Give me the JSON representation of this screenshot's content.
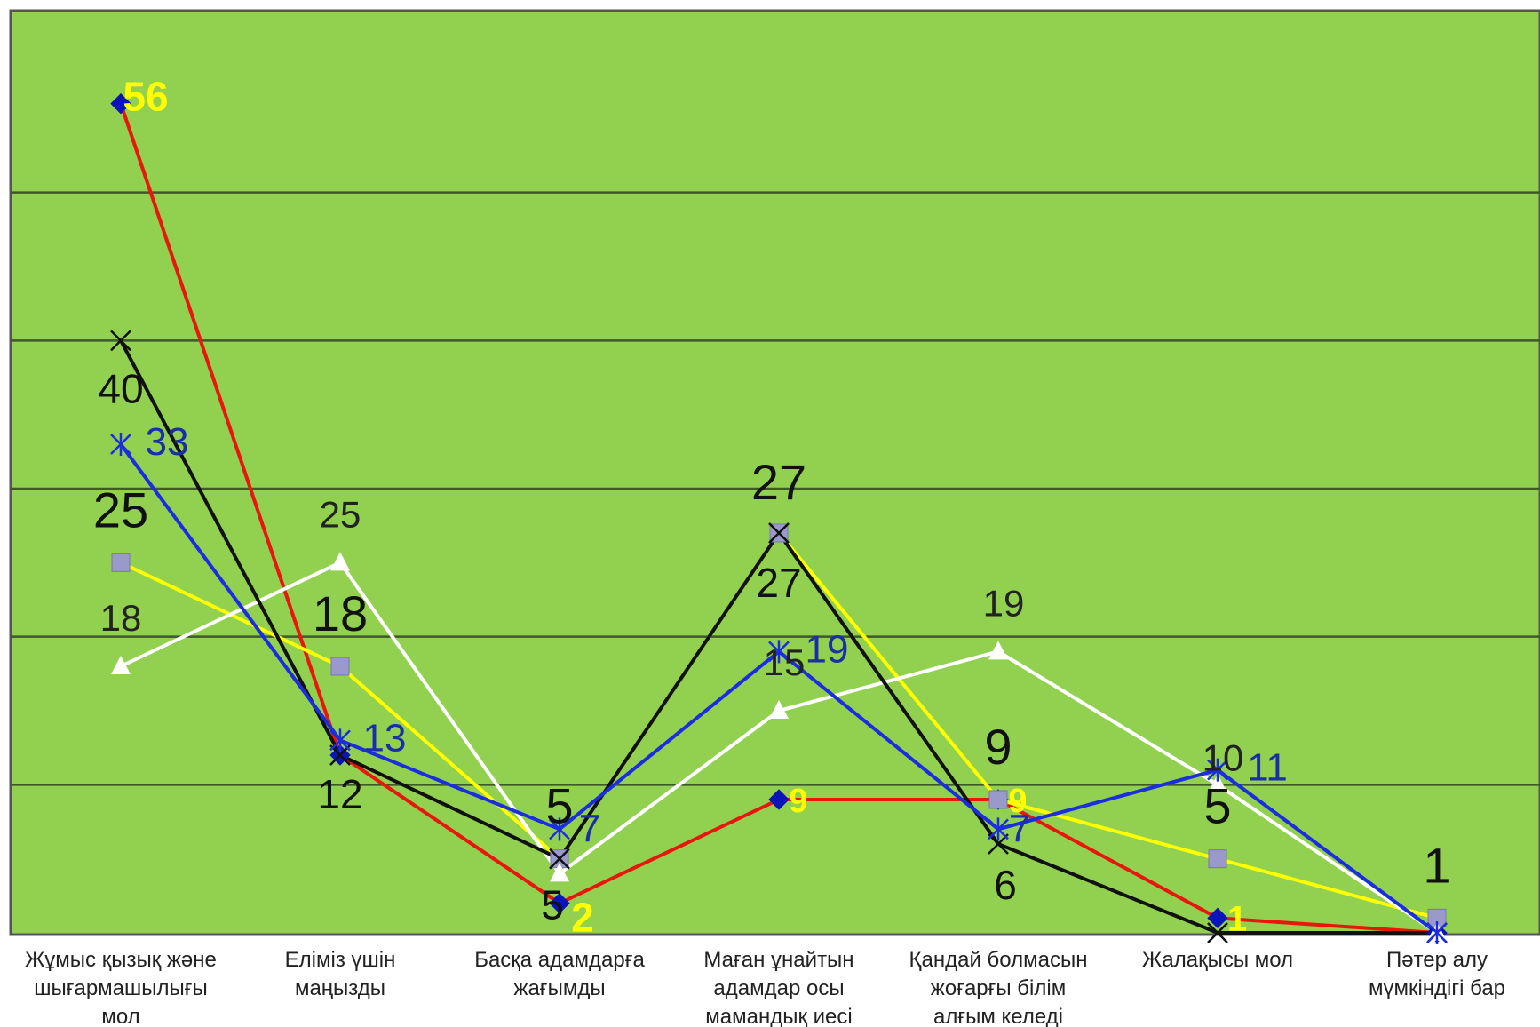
{
  "chart_data": {
    "type": "line",
    "title": "",
    "xlabel": "",
    "ylabel": "",
    "ylim": [
      0,
      60
    ],
    "grid": true,
    "legend": "none",
    "background": "#92d050",
    "categories": [
      [
        "Жұмыс қызық және",
        "шығармашылығы",
        "мол"
      ],
      [
        "Еліміз үшін",
        "маңызды"
      ],
      [
        "Басқа адамдарға",
        "жағымды"
      ],
      [
        "Маған ұнайтын",
        "адамдар осы",
        "мамандық иесі"
      ],
      [
        "Қандай болмасын",
        "жоғарғы білім",
        "алғым келеді"
      ],
      [
        "Жалақысы мол"
      ],
      [
        "Пәтер алу",
        "мүмкіндігі бар"
      ]
    ],
    "series": [
      {
        "color": "#e8160c",
        "marker": "diamond",
        "marker_color": "#0a14b8",
        "values": [
          56,
          12,
          2,
          9,
          9,
          1,
          0
        ],
        "label_color": "#ffff00",
        "label_weight": "bold",
        "labels": [
          "56",
          "",
          "2",
          "9",
          "9",
          "1",
          ""
        ]
      },
      {
        "color": "#ffff00",
        "marker": "square",
        "marker_color": "#9999cc",
        "values": [
          25,
          18,
          5,
          27,
          9,
          5,
          1
        ],
        "label_color": "#111111",
        "label_weight": "normal",
        "labels": [
          "25",
          "18",
          "5",
          "27",
          "9",
          "5",
          "1"
        ]
      },
      {
        "color": "#ffffff",
        "marker": "triangle",
        "marker_color": "#ffffff",
        "values": [
          18,
          25,
          4,
          15,
          19,
          10,
          0
        ],
        "label_color": "#222222",
        "label_weight": "normal",
        "labels": [
          "18",
          "25",
          "",
          "15",
          "19",
          "10",
          ""
        ]
      },
      {
        "color": "#111111",
        "marker": "x",
        "marker_color": "#111111",
        "values": [
          40,
          12,
          5,
          27,
          6,
          0,
          0
        ],
        "label_color": "#111111",
        "label_weight": "normal",
        "labels": [
          "40",
          "12",
          "5",
          "27",
          "6",
          "",
          ""
        ]
      },
      {
        "color": "#1a2ee0",
        "marker": "star",
        "marker_color": "#1a2ee0",
        "values": [
          33,
          13,
          7,
          19,
          7,
          11,
          0
        ],
        "label_color": "#1a2ea8",
        "label_weight": "normal",
        "labels": [
          "33",
          "13",
          "7",
          "19",
          "7",
          "11",
          ""
        ]
      }
    ]
  }
}
